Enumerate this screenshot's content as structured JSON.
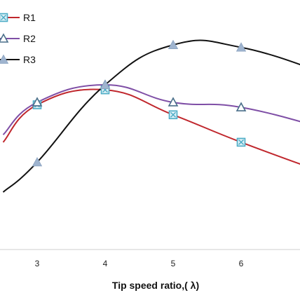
{
  "chart_data": {
    "type": "line",
    "xlabel": "Tip speed ratio,( λ)",
    "ylabel": "",
    "title": "",
    "x_ticks": [
      3,
      4,
      5,
      6
    ],
    "xlim": [
      2.5,
      7.3
    ],
    "ylim": [
      0,
      1
    ],
    "grid": false,
    "legend_position": "top-left",
    "series": [
      {
        "name": "R1",
        "color": "#c0272d",
        "marker": "boxed-x",
        "marker_color": "#4bacc6",
        "x": [
          2.5,
          3,
          4,
          5,
          6,
          7.3
        ],
        "y": [
          0.43,
          0.58,
          0.64,
          0.54,
          0.43,
          0.3
        ],
        "marker_x": [
          3,
          4,
          5,
          6
        ]
      },
      {
        "name": "R2",
        "color": "#7f4fa6",
        "marker": "open-triangle",
        "marker_color": "#4a6f8a",
        "x": [
          2.5,
          3,
          4,
          5,
          6,
          7.3
        ],
        "y": [
          0.46,
          0.59,
          0.66,
          0.59,
          0.57,
          0.48
        ],
        "marker_x": [
          3,
          4,
          5,
          6
        ]
      },
      {
        "name": "R3",
        "color": "#111111",
        "marker": "filled-triangle",
        "marker_color": "#9fb4cf",
        "x": [
          2.5,
          3,
          4,
          5,
          6,
          7.3
        ],
        "y": [
          0.23,
          0.35,
          0.66,
          0.82,
          0.81,
          0.7
        ],
        "marker_x": [
          3,
          4,
          5,
          6
        ]
      }
    ]
  }
}
